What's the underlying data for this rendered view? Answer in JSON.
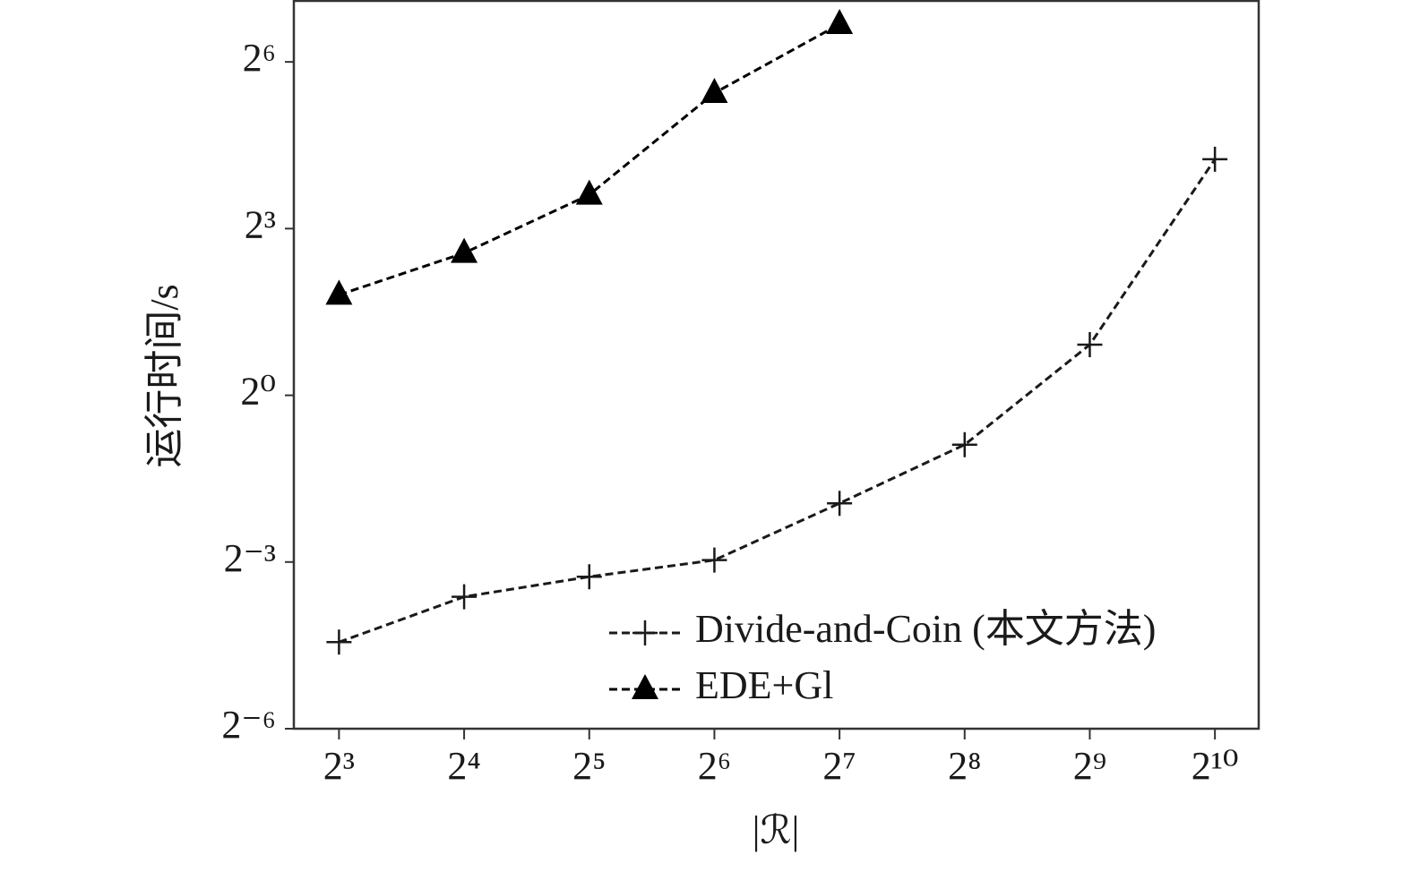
{
  "chart_data": {
    "type": "line",
    "x_label": "|ℛ|",
    "y_label": "运行时间/s",
    "xscale": "log",
    "yscale": "log",
    "log_base": 2,
    "x": [
      8,
      16,
      32,
      64,
      128,
      256,
      512,
      1024
    ],
    "series": [
      {
        "name": "Divide-and-Coin (本文方法)",
        "color": "#1a1a1a",
        "marker": "plus",
        "values": [
          0.046,
          0.081,
          0.104,
          0.128,
          0.26,
          0.54,
          1.88,
          19.0
        ]
      },
      {
        "name": "EDE+Gl",
        "color": "#000000",
        "marker": "triangle",
        "values": [
          3.5,
          5.9,
          12.2,
          43.4,
          102.5,
          null,
          null,
          null
        ]
      }
    ],
    "xlim": [
      6.23,
      1305
    ],
    "ylim": [
      0.015625,
      137
    ],
    "xticks": [
      {
        "value": 8,
        "label": "2³"
      },
      {
        "value": 16,
        "label": "2⁴"
      },
      {
        "value": 32,
        "label": "2⁵"
      },
      {
        "value": 64,
        "label": "2⁶"
      },
      {
        "value": 128,
        "label": "2⁷"
      },
      {
        "value": 256,
        "label": "2⁸"
      },
      {
        "value": 512,
        "label": "2⁹"
      },
      {
        "value": 1024,
        "label": "2¹⁰"
      }
    ],
    "yticks": [
      {
        "value": 0.015625,
        "label": "2⁻⁶"
      },
      {
        "value": 0.125,
        "label": "2⁻³"
      },
      {
        "value": 1,
        "label": "2⁰"
      },
      {
        "value": 8,
        "label": "2³"
      },
      {
        "value": 64,
        "label": "2⁶"
      }
    ],
    "grid": false,
    "legend": "lower right"
  }
}
